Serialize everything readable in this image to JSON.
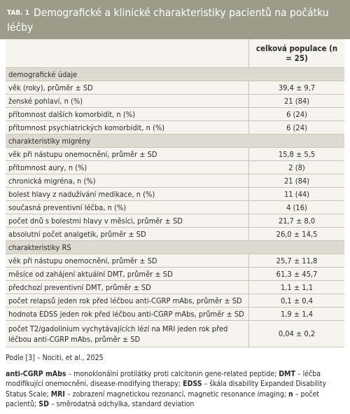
{
  "header": {
    "label": "TAB. 1",
    "title": "Demografické a klinické charakteristiky pacientů na počátku léčby"
  },
  "table": {
    "column_header": "celková populace (n = 25)",
    "sections": [
      {
        "title": "demografické údaje",
        "rows": [
          [
            "věk (roky), průměr ± SD",
            "39,4 ± 9,7"
          ],
          [
            "ženské pohlaví, n (%)",
            "21 (84)"
          ],
          [
            "přítomnost dalších komorbidit, n (%)",
            "6 (24)"
          ],
          [
            "přítomnost psychiatrických komorbidit, n (%)",
            "6 (24)"
          ]
        ]
      },
      {
        "title": "charakteristiky migrény",
        "rows": [
          [
            "věk při nástupu onemocnění, průměr ± SD",
            "15,8 ± 5,5"
          ],
          [
            "přítomnost aury, n (%)",
            "2 (8)"
          ],
          [
            "chronická migréna, n (%)",
            "21 (84)"
          ],
          [
            "bolest hlavy z nadužívání medikace, n (%)",
            "11 (44)"
          ],
          [
            "současná preventivní léčba, n (%)",
            "4 (16)"
          ],
          [
            "počet dnů s bolestmi hlavy v měsíci, průměr ± SD",
            "21,7 ± 8,0"
          ],
          [
            "absolutní počet analgetik, průměr ± SD",
            "26,0 ± 14,5"
          ]
        ]
      },
      {
        "title": "charakteristiky RS",
        "rows": [
          [
            "věk při nástupu onemocnění, průměr ± SD",
            "25,7 ± 11,8"
          ],
          [
            "měsíce od zahájení aktuální DMT, průměr ± SD",
            "61,3 ± 45,7"
          ],
          [
            "předchozí preventivní DMT, průměr ± SD",
            "1,1 ± 1,1"
          ],
          [
            "počet relapsů jeden rok před léčbou anti-CGRP mAbs, průměr ± SD",
            "0,1 ± 0,4"
          ],
          [
            "hodnota EDSS jeden rok před léčbou anti-CGRP mAbs, průměr ± SD",
            "1,9 ± 1,4"
          ],
          [
            "počet T2/gadolinium vychytávajících lézí na MRI jeden rok před léčbou anti-CGRP mAbs, průměr ± SD",
            "0,04 ± 0,2"
          ]
        ]
      }
    ]
  },
  "footer": {
    "source": "Podle [3] – Nociti, et al., 2025",
    "abbreviations": [
      {
        "term": "anti-CGRP mAbs",
        "definition": "– monoklonální protilátky proti calcitonin gene-related peptide;"
      },
      {
        "term": "DMT",
        "definition": "– léčba modifikující onemocnění, disease-modifying therapy;"
      },
      {
        "term": "EDSS",
        "definition": "– škála disability Expanded Disability Status Scale;"
      },
      {
        "term": "MRI",
        "definition": "– zobrazení magnetickou rezonancí, magnetic resonance imaging;"
      },
      {
        "term": "n",
        "definition": "– počet pacientů;"
      },
      {
        "term": "SD",
        "definition": "– směrodatná odchylka, standard deviation"
      }
    ]
  }
}
